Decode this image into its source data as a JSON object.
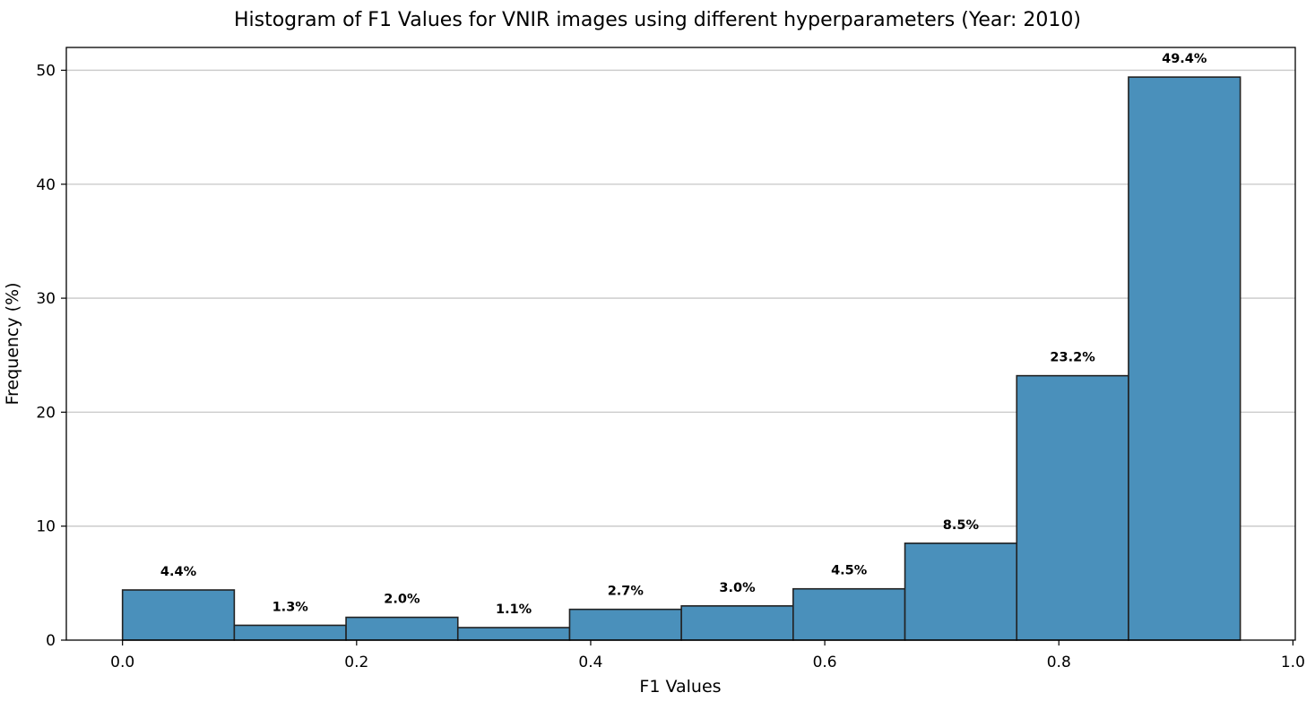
{
  "chart_data": {
    "type": "bar",
    "title": "Histogram of F1 Values for VNIR images using different hyperparameters (Year: 2010)",
    "xlabel": "F1 Values",
    "ylabel": "Frequency (%)",
    "xlim": [
      -0.048,
      1.002
    ],
    "ylim": [
      0,
      52
    ],
    "xticks": [
      0.0,
      0.2,
      0.4,
      0.6,
      0.8,
      1.0
    ],
    "xtick_labels": [
      "0.0",
      "0.2",
      "0.4",
      "0.6",
      "0.8",
      "1.0"
    ],
    "yticks": [
      0,
      10,
      20,
      30,
      40,
      50
    ],
    "ytick_labels": [
      "0",
      "10",
      "20",
      "30",
      "40",
      "50"
    ],
    "grid": "y",
    "bar_color": "#4a90bb",
    "edge_color": "#222222",
    "bins": [
      {
        "x0": 0.0,
        "x1": 0.0955,
        "value": 4.4,
        "label": "4.4%"
      },
      {
        "x0": 0.0955,
        "x1": 0.191,
        "value": 1.3,
        "label": "1.3%"
      },
      {
        "x0": 0.191,
        "x1": 0.2865,
        "value": 2.0,
        "label": "2.0%"
      },
      {
        "x0": 0.2865,
        "x1": 0.382,
        "value": 1.1,
        "label": "1.1%"
      },
      {
        "x0": 0.382,
        "x1": 0.4775,
        "value": 2.7,
        "label": "2.7%"
      },
      {
        "x0": 0.4775,
        "x1": 0.573,
        "value": 3.0,
        "label": "3.0%"
      },
      {
        "x0": 0.573,
        "x1": 0.6685,
        "value": 4.5,
        "label": "4.5%"
      },
      {
        "x0": 0.6685,
        "x1": 0.764,
        "value": 8.5,
        "label": "8.5%"
      },
      {
        "x0": 0.764,
        "x1": 0.8595,
        "value": 23.2,
        "label": "23.2%"
      },
      {
        "x0": 0.8595,
        "x1": 0.955,
        "value": 49.4,
        "label": "49.4%"
      }
    ]
  }
}
